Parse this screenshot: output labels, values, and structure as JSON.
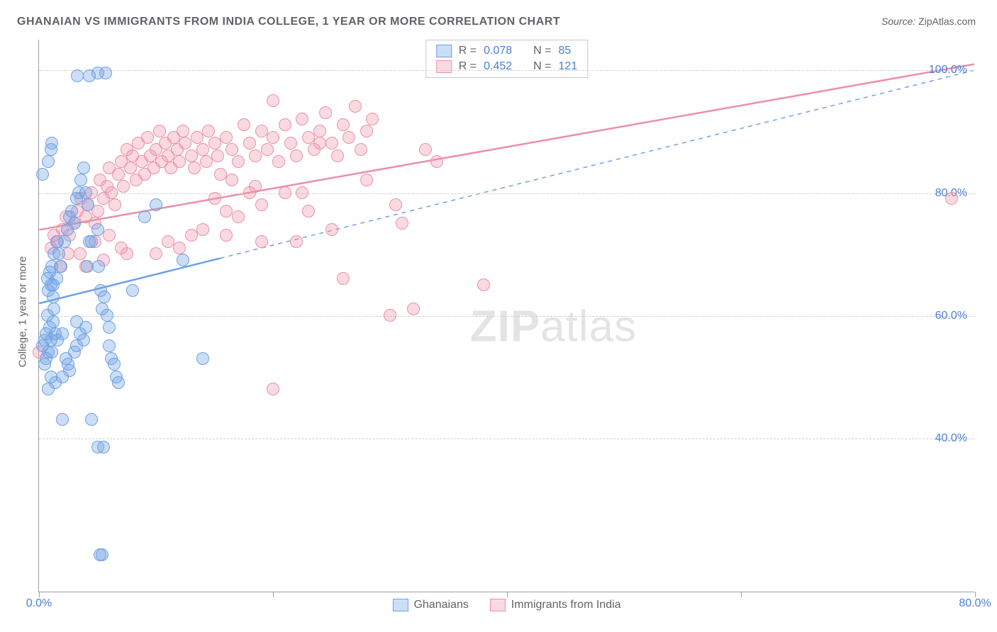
{
  "title": "GHANAIAN VS IMMIGRANTS FROM INDIA COLLEGE, 1 YEAR OR MORE CORRELATION CHART",
  "source_label": "Source:",
  "source_value": "ZipAtlas.com",
  "ylabel": "College, 1 year or more",
  "watermark": {
    "bold": "ZIP",
    "light": "atlas"
  },
  "chart": {
    "type": "scatter",
    "xlim": [
      0,
      80
    ],
    "ylim": [
      15,
      105
    ],
    "grid_color": "#d0d0d0",
    "axis_color": "#9aa0a6",
    "background_color": "#ffffff",
    "label_fontsize": 15,
    "tick_fontsize": 16,
    "marker_size": 18,
    "marker_opacity": 0.35,
    "x_ticks": [
      0,
      20,
      40,
      60,
      80
    ],
    "x_tick_labels": {
      "0": "0.0%",
      "80": "80.0%"
    },
    "x_tick_color": "#4a7ed9",
    "y_gridlines": [
      40,
      60,
      80,
      100
    ],
    "y_tick_labels": {
      "40": "40.0%",
      "60": "60.0%",
      "80": "80.0%",
      "100": "100.0%"
    },
    "y_tick_color": "#4a7ed9",
    "legend_top": {
      "rows": [
        {
          "swatch": "blue",
          "R_label": "R =",
          "R": "0.078",
          "N_label": "N =",
          "N": "85"
        },
        {
          "swatch": "pink",
          "R_label": "R =",
          "R": "0.452",
          "N_label": "N =",
          "N": "121"
        }
      ]
    },
    "legend_bottom": [
      {
        "swatch": "blue",
        "label": "Ghanaians"
      },
      {
        "swatch": "pink",
        "label": "Immigrants from India"
      }
    ],
    "series": {
      "blue": {
        "fill": "#6ea0e6",
        "stroke": "#6ea0e6",
        "trend": {
          "x1": 0,
          "y1": 62,
          "x2": 80,
          "y2": 100,
          "solid_until_x": 15.5,
          "width": 2.5,
          "dash": "6,6"
        },
        "points": [
          [
            0.3,
            55
          ],
          [
            0.5,
            56
          ],
          [
            0.6,
            57
          ],
          [
            0.8,
            54
          ],
          [
            0.5,
            52
          ],
          [
            0.7,
            66
          ],
          [
            0.8,
            64
          ],
          [
            1,
            65
          ],
          [
            1.2,
            65
          ],
          [
            1.3,
            61
          ],
          [
            1.5,
            66
          ],
          [
            0.7,
            60
          ],
          [
            0.9,
            58
          ],
          [
            1.2,
            59
          ],
          [
            0.6,
            53
          ],
          [
            1,
            56
          ],
          [
            1.1,
            54
          ],
          [
            1.4,
            57
          ],
          [
            1.6,
            56
          ],
          [
            2,
            57
          ],
          [
            0.8,
            48
          ],
          [
            1,
            50
          ],
          [
            1.4,
            49
          ],
          [
            2,
            50
          ],
          [
            2.3,
            53
          ],
          [
            2.5,
            52
          ],
          [
            2.6,
            51
          ],
          [
            3,
            54
          ],
          [
            3.2,
            59
          ],
          [
            3.2,
            55
          ],
          [
            3.5,
            57
          ],
          [
            3.8,
            56
          ],
          [
            4,
            58
          ],
          [
            4.1,
            68
          ],
          [
            4.3,
            72
          ],
          [
            4.5,
            72
          ],
          [
            5,
            74
          ],
          [
            5.1,
            68
          ],
          [
            5.3,
            64
          ],
          [
            5.4,
            61
          ],
          [
            5.6,
            63
          ],
          [
            5.8,
            60
          ],
          [
            6,
            58
          ],
          [
            6,
            55
          ],
          [
            6.2,
            53
          ],
          [
            6.4,
            52
          ],
          [
            6.6,
            50
          ],
          [
            6.8,
            49
          ],
          [
            2.2,
            72
          ],
          [
            2.4,
            74
          ],
          [
            2.6,
            76
          ],
          [
            2.8,
            77
          ],
          [
            3,
            75
          ],
          [
            3.2,
            79
          ],
          [
            3.4,
            80
          ],
          [
            3.6,
            82
          ],
          [
            3.8,
            84
          ],
          [
            4,
            80
          ],
          [
            4.2,
            78
          ],
          [
            1.5,
            72
          ],
          [
            1.7,
            70
          ],
          [
            1.9,
            68
          ],
          [
            1.3,
            70
          ],
          [
            1.1,
            68
          ],
          [
            0.9,
            67
          ],
          [
            1.2,
            63
          ],
          [
            3.3,
            99
          ],
          [
            4.3,
            99
          ],
          [
            5.0,
            99.5
          ],
          [
            5.7,
            99.5
          ],
          [
            0.3,
            83
          ],
          [
            0.8,
            85
          ],
          [
            1,
            87
          ],
          [
            1.1,
            88
          ],
          [
            2,
            43
          ],
          [
            4.5,
            43
          ],
          [
            5,
            38.5
          ],
          [
            5.5,
            38.5
          ],
          [
            5.2,
            21
          ],
          [
            5.4,
            21
          ],
          [
            14,
            53
          ],
          [
            12.3,
            69
          ],
          [
            8,
            64
          ],
          [
            9,
            76
          ],
          [
            10,
            78
          ]
        ]
      },
      "pink": {
        "fill": "#ec8fa5",
        "stroke": "#ec8fa5",
        "trend": {
          "x1": 0,
          "y1": 74,
          "x2": 80,
          "y2": 101,
          "solid_until_x": 80,
          "width": 2.5
        },
        "points": [
          [
            0,
            54
          ],
          [
            1,
            71
          ],
          [
            1.3,
            73
          ],
          [
            1.6,
            72
          ],
          [
            2,
            74
          ],
          [
            2.3,
            76
          ],
          [
            2.6,
            73
          ],
          [
            3,
            75
          ],
          [
            3.3,
            77
          ],
          [
            3.6,
            79
          ],
          [
            4,
            76
          ],
          [
            4.2,
            78
          ],
          [
            4.5,
            80
          ],
          [
            4.8,
            75
          ],
          [
            5,
            77
          ],
          [
            5.2,
            82
          ],
          [
            5.5,
            79
          ],
          [
            5.8,
            81
          ],
          [
            6,
            84
          ],
          [
            6.2,
            80
          ],
          [
            6.5,
            78
          ],
          [
            6.8,
            83
          ],
          [
            7,
            85
          ],
          [
            7.2,
            81
          ],
          [
            7.5,
            87
          ],
          [
            7.8,
            84
          ],
          [
            8,
            86
          ],
          [
            8.3,
            82
          ],
          [
            8.5,
            88
          ],
          [
            8.8,
            85
          ],
          [
            9,
            83
          ],
          [
            9.3,
            89
          ],
          [
            9.5,
            86
          ],
          [
            9.8,
            84
          ],
          [
            10,
            87
          ],
          [
            10.3,
            90
          ],
          [
            10.5,
            85
          ],
          [
            10.8,
            88
          ],
          [
            11,
            86
          ],
          [
            11.3,
            84
          ],
          [
            11.5,
            89
          ],
          [
            11.8,
            87
          ],
          [
            12,
            85
          ],
          [
            12.3,
            90
          ],
          [
            12.5,
            88
          ],
          [
            13,
            86
          ],
          [
            13.3,
            84
          ],
          [
            13.5,
            89
          ],
          [
            14,
            87
          ],
          [
            14.3,
            85
          ],
          [
            14.5,
            90
          ],
          [
            15,
            88
          ],
          [
            15.3,
            86
          ],
          [
            15.5,
            83
          ],
          [
            16,
            89
          ],
          [
            16.5,
            87
          ],
          [
            17,
            85
          ],
          [
            17.5,
            91
          ],
          [
            18,
            88
          ],
          [
            18.5,
            86
          ],
          [
            19,
            90
          ],
          [
            19.5,
            87
          ],
          [
            20,
            89
          ],
          [
            20.5,
            85
          ],
          [
            21,
            91
          ],
          [
            21.5,
            88
          ],
          [
            22,
            86
          ],
          [
            22.5,
            92
          ],
          [
            23,
            89
          ],
          [
            23.5,
            87
          ],
          [
            24,
            90
          ],
          [
            24.5,
            93
          ],
          [
            25,
            88
          ],
          [
            25.5,
            86
          ],
          [
            26,
            91
          ],
          [
            26.5,
            89
          ],
          [
            27,
            94
          ],
          [
            27.5,
            87
          ],
          [
            28,
            90
          ],
          [
            28.5,
            92
          ],
          [
            30.5,
            78
          ],
          [
            31,
            75
          ],
          [
            33,
            87
          ],
          [
            34,
            85
          ],
          [
            18,
            80
          ],
          [
            21,
            80
          ],
          [
            22,
            72
          ],
          [
            25,
            74
          ],
          [
            20,
            95
          ],
          [
            24,
            88
          ],
          [
            10,
            70
          ],
          [
            11,
            72
          ],
          [
            12,
            71
          ],
          [
            13,
            73
          ],
          [
            15,
            79
          ],
          [
            16,
            77
          ],
          [
            17,
            76
          ],
          [
            19,
            78
          ],
          [
            20,
            48
          ],
          [
            30,
            60
          ],
          [
            32,
            61
          ],
          [
            26,
            66
          ],
          [
            38,
            65
          ],
          [
            3.5,
            70
          ],
          [
            4.8,
            72
          ],
          [
            6,
            73
          ],
          [
            7.5,
            70
          ],
          [
            16.5,
            82
          ],
          [
            18.5,
            81
          ],
          [
            22.5,
            80
          ],
          [
            1.8,
            68
          ],
          [
            2.5,
            70
          ],
          [
            4,
            68
          ],
          [
            5.5,
            69
          ],
          [
            7,
            71
          ],
          [
            14,
            74
          ],
          [
            16,
            73
          ],
          [
            19,
            72
          ],
          [
            23,
            77
          ],
          [
            28,
            82
          ],
          [
            78,
            79
          ]
        ]
      }
    }
  }
}
